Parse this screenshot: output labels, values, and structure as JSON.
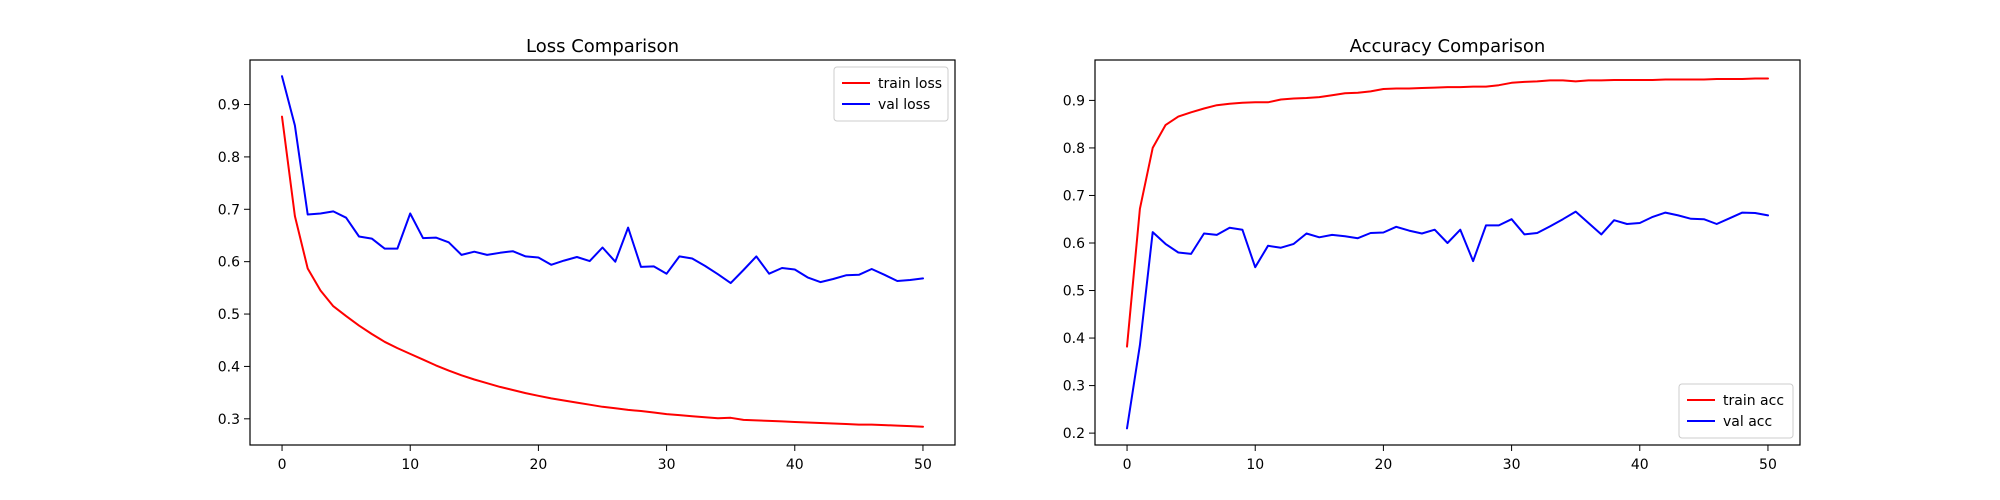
{
  "chart_data": [
    {
      "type": "line",
      "title": "Loss Comparison",
      "xlabel": "",
      "ylabel": "",
      "xlim": [
        -2.5,
        52.5
      ],
      "ylim": [
        0.25,
        0.985
      ],
      "xticks": [
        0,
        10,
        20,
        30,
        40,
        50
      ],
      "yticks": [
        0.3,
        0.4,
        0.5,
        0.6,
        0.7,
        0.8,
        0.9
      ],
      "grid": false,
      "legend_position": "top-right",
      "x": [
        0,
        1,
        2,
        3,
        4,
        5,
        6,
        7,
        8,
        9,
        10,
        11,
        12,
        13,
        14,
        15,
        16,
        17,
        18,
        19,
        20,
        21,
        22,
        23,
        24,
        25,
        26,
        27,
        28,
        29,
        30,
        31,
        32,
        33,
        34,
        35,
        36,
        37,
        38,
        39,
        40,
        41,
        42,
        43,
        44,
        45,
        46,
        47,
        48,
        49,
        50
      ],
      "series": [
        {
          "name": "train loss",
          "color": "#ff0000",
          "values": [
            0.877,
            0.687,
            0.587,
            0.545,
            0.515,
            0.496,
            0.478,
            0.462,
            0.447,
            0.435,
            0.424,
            0.413,
            0.402,
            0.392,
            0.383,
            0.375,
            0.368,
            0.361,
            0.355,
            0.349,
            0.344,
            0.339,
            0.335,
            0.331,
            0.327,
            0.323,
            0.32,
            0.317,
            0.315,
            0.312,
            0.309,
            0.307,
            0.305,
            0.303,
            0.301,
            0.302,
            0.298,
            0.297,
            0.296,
            0.295,
            0.294,
            0.293,
            0.292,
            0.291,
            0.29,
            0.289,
            0.289,
            0.288,
            0.287,
            0.286,
            0.285
          ]
        },
        {
          "name": "val loss",
          "color": "#0000ff",
          "values": [
            0.954,
            0.86,
            0.69,
            0.692,
            0.696,
            0.684,
            0.648,
            0.644,
            0.625,
            0.625,
            0.692,
            0.645,
            0.646,
            0.637,
            0.613,
            0.619,
            0.613,
            0.617,
            0.62,
            0.61,
            0.608,
            0.594,
            0.602,
            0.609,
            0.601,
            0.627,
            0.6,
            0.665,
            0.59,
            0.591,
            0.577,
            0.61,
            0.606,
            0.592,
            0.576,
            0.559,
            0.584,
            0.61,
            0.577,
            0.588,
            0.585,
            0.57,
            0.561,
            0.567,
            0.574,
            0.575,
            0.586,
            0.575,
            0.563,
            0.565,
            0.568
          ]
        }
      ]
    },
    {
      "type": "line",
      "title": "Accuracy Comparison",
      "xlabel": "",
      "ylabel": "",
      "xlim": [
        -2.5,
        52.5
      ],
      "ylim": [
        0.175,
        0.985
      ],
      "xticks": [
        0,
        10,
        20,
        30,
        40,
        50
      ],
      "yticks": [
        0.2,
        0.3,
        0.4,
        0.5,
        0.6,
        0.7,
        0.8,
        0.9
      ],
      "grid": false,
      "legend_position": "bottom-right",
      "x": [
        0,
        1,
        2,
        3,
        4,
        5,
        6,
        7,
        8,
        9,
        10,
        11,
        12,
        13,
        14,
        15,
        16,
        17,
        18,
        19,
        20,
        21,
        22,
        23,
        24,
        25,
        26,
        27,
        28,
        29,
        30,
        31,
        32,
        33,
        34,
        35,
        36,
        37,
        38,
        39,
        40,
        41,
        42,
        43,
        44,
        45,
        46,
        47,
        48,
        49,
        50
      ],
      "series": [
        {
          "name": "train acc",
          "color": "#ff0000",
          "values": [
            0.382,
            0.672,
            0.8,
            0.848,
            0.866,
            0.875,
            0.883,
            0.89,
            0.893,
            0.895,
            0.896,
            0.896,
            0.902,
            0.904,
            0.905,
            0.907,
            0.911,
            0.915,
            0.916,
            0.919,
            0.924,
            0.925,
            0.925,
            0.926,
            0.927,
            0.928,
            0.928,
            0.929,
            0.929,
            0.932,
            0.937,
            0.939,
            0.94,
            0.942,
            0.942,
            0.94,
            0.942,
            0.942,
            0.943,
            0.943,
            0.943,
            0.943,
            0.944,
            0.944,
            0.944,
            0.944,
            0.945,
            0.945,
            0.945,
            0.946,
            0.946
          ]
        },
        {
          "name": "val acc",
          "color": "#0000ff",
          "values": [
            0.21,
            0.385,
            0.623,
            0.598,
            0.58,
            0.577,
            0.62,
            0.617,
            0.632,
            0.628,
            0.549,
            0.594,
            0.59,
            0.598,
            0.62,
            0.612,
            0.617,
            0.614,
            0.61,
            0.621,
            0.622,
            0.634,
            0.626,
            0.62,
            0.628,
            0.6,
            0.628,
            0.562,
            0.637,
            0.637,
            0.65,
            0.618,
            0.621,
            0.635,
            0.65,
            0.666,
            0.642,
            0.618,
            0.648,
            0.64,
            0.642,
            0.655,
            0.664,
            0.658,
            0.651,
            0.65,
            0.64,
            0.652,
            0.664,
            0.663,
            0.658
          ]
        }
      ]
    }
  ]
}
